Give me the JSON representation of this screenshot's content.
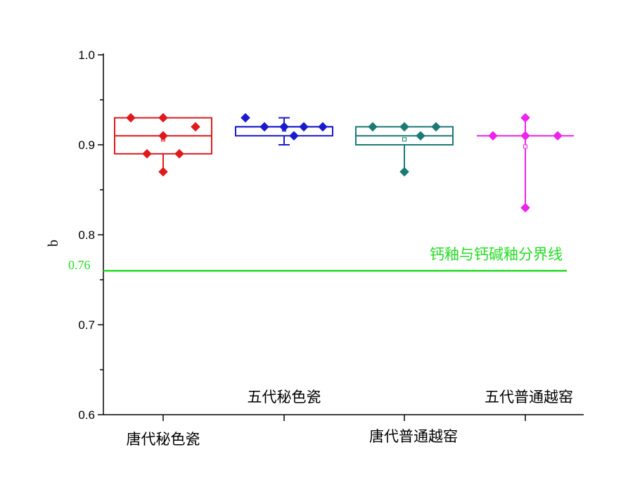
{
  "chart_data": {
    "type": "box",
    "ylabel": "b",
    "ylim": [
      0.6,
      1.0
    ],
    "yticks": [
      "0.6",
      "0.7",
      "0.8",
      "0.9",
      "1.0"
    ],
    "grid": false,
    "categories": [
      "唐代秘色瓷",
      "五代秘色瓷",
      "唐代普通越窑",
      "五代普通越窑"
    ],
    "series": [
      {
        "color": "#e0191b",
        "q1": 0.89,
        "median": 0.91,
        "q3": 0.93,
        "whisker_low": 0.87,
        "whisker_high": 0.93,
        "mean": 0.906,
        "points": [
          0.93,
          0.93,
          0.91,
          0.92,
          0.89,
          0.89,
          0.87
        ]
      },
      {
        "color": "#1a1acc",
        "q1": 0.91,
        "median": 0.92,
        "q3": 0.92,
        "whisker_low": 0.9,
        "whisker_high": 0.93,
        "mean": 0.917,
        "points": [
          0.93,
          0.92,
          0.92,
          0.92,
          0.92,
          0.91
        ]
      },
      {
        "color": "#1b7a74",
        "q1": 0.9,
        "median": 0.91,
        "q3": 0.92,
        "whisker_low": 0.87,
        "whisker_high": 0.92,
        "mean": 0.906,
        "points": [
          0.92,
          0.92,
          0.92,
          0.91,
          0.87
        ]
      },
      {
        "color": "#ee22ee",
        "q1": 0.91,
        "median": 0.91,
        "q3": 0.91,
        "whisker_low": 0.83,
        "whisker_high": 0.93,
        "mean": 0.898,
        "points": [
          0.93,
          0.91,
          0.91,
          0.91,
          0.83
        ]
      }
    ],
    "reference_line": {
      "value": 0.76,
      "value_label": "0.76",
      "label": "钙釉与钙碱釉分界线",
      "color": "#22dd22"
    }
  }
}
